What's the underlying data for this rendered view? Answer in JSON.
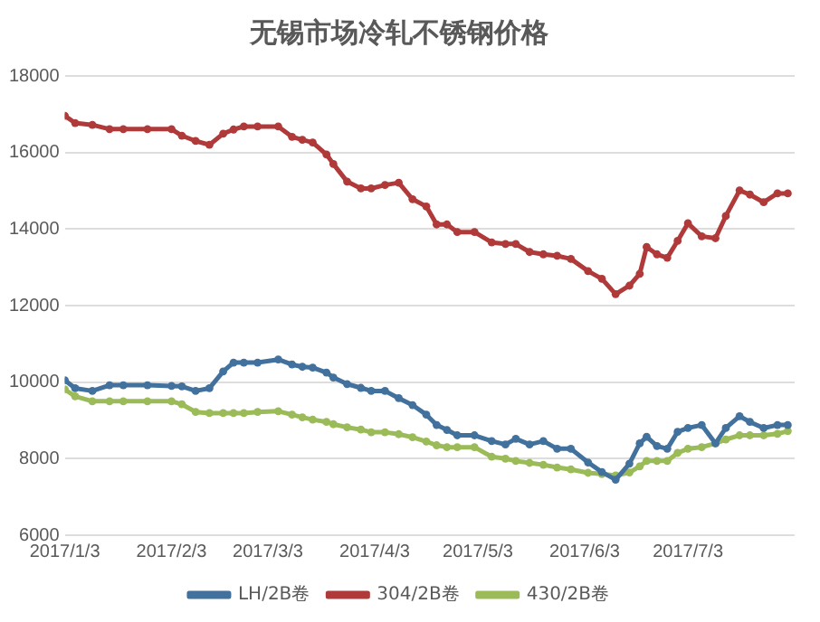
{
  "chart_data": {
    "type": "line",
    "title": "无锡市场冷轧不锈钢价格",
    "x": [
      "2017-01-03",
      "2017-01-06",
      "2017-01-11",
      "2017-01-16",
      "2017-01-20",
      "2017-01-27",
      "2017-02-03",
      "2017-02-06",
      "2017-02-10",
      "2017-02-14",
      "2017-02-18",
      "2017-02-21",
      "2017-02-24",
      "2017-02-28",
      "2017-03-06",
      "2017-03-10",
      "2017-03-13",
      "2017-03-16",
      "2017-03-20",
      "2017-03-22",
      "2017-03-26",
      "2017-03-30",
      "2017-04-02",
      "2017-04-06",
      "2017-04-10",
      "2017-04-14",
      "2017-04-18",
      "2017-04-21",
      "2017-04-24",
      "2017-04-27",
      "2017-05-02",
      "2017-05-07",
      "2017-05-11",
      "2017-05-14",
      "2017-05-18",
      "2017-05-22",
      "2017-05-26",
      "2017-05-30",
      "2017-06-04",
      "2017-06-08",
      "2017-06-12",
      "2017-06-16",
      "2017-06-19",
      "2017-06-21",
      "2017-06-24",
      "2017-06-27",
      "2017-06-30",
      "2017-07-03",
      "2017-07-07",
      "2017-07-11",
      "2017-07-14",
      "2017-07-18",
      "2017-07-21",
      "2017-07-25",
      "2017-07-29",
      "2017-08-01"
    ],
    "series": [
      {
        "name": "LH/2B卷",
        "color": "#41719c",
        "values": [
          10050,
          9840,
          9770,
          9920,
          9920,
          9920,
          9900,
          9890,
          9770,
          9840,
          10280,
          10510,
          10510,
          10510,
          10590,
          10460,
          10400,
          10380,
          10250,
          10120,
          9950,
          9850,
          9770,
          9770,
          9580,
          9400,
          9150,
          8880,
          8750,
          8610,
          8610,
          8460,
          8370,
          8520,
          8370,
          8460,
          8260,
          8260,
          7900,
          7650,
          7450,
          7870,
          8400,
          8570,
          8330,
          8260,
          8700,
          8800,
          8880,
          8400,
          8800,
          9110,
          8960,
          8800,
          8880,
          8880
        ]
      },
      {
        "name": "304/2B卷",
        "color": "#b03a3a",
        "values": [
          16960,
          16770,
          16720,
          16610,
          16610,
          16610,
          16610,
          16440,
          16300,
          16200,
          16490,
          16600,
          16680,
          16680,
          16680,
          16410,
          16330,
          16260,
          15950,
          15700,
          15240,
          15060,
          15060,
          15150,
          15210,
          14780,
          14590,
          14120,
          14120,
          13920,
          13920,
          13650,
          13610,
          13610,
          13400,
          13340,
          13300,
          13220,
          12900,
          12700,
          12300,
          12520,
          12830,
          13530,
          13340,
          13250,
          13690,
          14150,
          13810,
          13760,
          14340,
          15010,
          14900,
          14700,
          14930,
          14930
        ]
      },
      {
        "name": "430/2B卷",
        "color": "#9bbb59",
        "values": [
          9810,
          9630,
          9500,
          9500,
          9500,
          9500,
          9500,
          9420,
          9220,
          9190,
          9190,
          9190,
          9190,
          9220,
          9240,
          9150,
          9080,
          9020,
          8960,
          8900,
          8820,
          8760,
          8690,
          8690,
          8640,
          8560,
          8450,
          8350,
          8300,
          8300,
          8300,
          8050,
          8000,
          7940,
          7890,
          7840,
          7770,
          7720,
          7630,
          7600,
          7560,
          7640,
          7800,
          7940,
          7940,
          7940,
          8150,
          8260,
          8300,
          8400,
          8500,
          8610,
          8610,
          8610,
          8650,
          8720
        ]
      }
    ],
    "xlim": [
      "2017-01-03",
      "2017-08-03"
    ],
    "xticks": [
      {
        "value": "2017-01-03",
        "label": "2017/1/3"
      },
      {
        "value": "2017-02-03",
        "label": "2017/2/3"
      },
      {
        "value": "2017-03-03",
        "label": "2017/3/3"
      },
      {
        "value": "2017-04-03",
        "label": "2017/4/3"
      },
      {
        "value": "2017-05-03",
        "label": "2017/5/3"
      },
      {
        "value": "2017-06-03",
        "label": "2017/6/3"
      },
      {
        "value": "2017-07-03",
        "label": "2017/7/3"
      }
    ],
    "ylim": [
      6000,
      18000
    ],
    "yticks": [
      6000,
      8000,
      10000,
      12000,
      14000,
      16000,
      18000
    ],
    "grid": "y",
    "legend": "bottom",
    "marker": "circle",
    "line_style": "solid"
  }
}
